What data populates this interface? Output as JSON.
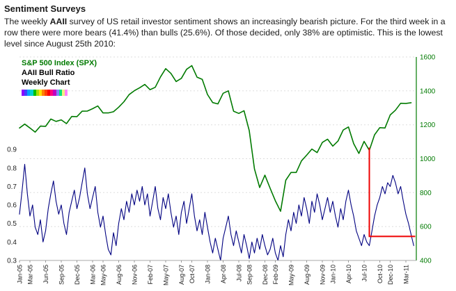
{
  "page": {
    "title": "Sentiment Surveys",
    "paragraph": {
      "pre": "The weekly ",
      "bold": "AAII",
      "post": " survey of US retail investor sentiment shows an increasingly bearish picture. For the third week in a row there were more bears (41.4%) than bulls (25.6%). Of those decided, only 38% are optimistic. This is the lowest level since August 25th 2010:"
    }
  },
  "legend": {
    "spx_label": "S&P 500 Index (SPX)",
    "ratio_label": "AAII Bull Ratio",
    "sub_label": "Weekly Chart",
    "spx_color": "#007a00",
    "ratio_color": "#000080"
  },
  "rainbow_colors": [
    "#8b00ff",
    "#4040ff",
    "#00a0ff",
    "#00d0d0",
    "#00c000",
    "#a0e000",
    "#ffe000",
    "#ff8000",
    "#ff4000",
    "#ff0000",
    "#ff0080",
    "#c000c0",
    "#8080ff",
    "#00e080",
    "#f0f080",
    "#ff80ff"
  ],
  "chart_data": {
    "type": "line",
    "title": "S&P 500 Index vs AAII Bull Ratio, Weekly Chart",
    "grid": {
      "color": "#dddddd",
      "dash": "2,3"
    },
    "x_axis": {
      "unit": "months since Jan-2005",
      "min": 0,
      "max": 76,
      "ticks": [
        {
          "label": "Jan-05",
          "m": 0
        },
        {
          "label": "Mar-05",
          "m": 2
        },
        {
          "label": "Jun-05",
          "m": 5
        },
        {
          "label": "Sep-05",
          "m": 8
        },
        {
          "label": "Dec-05",
          "m": 11
        },
        {
          "label": "Mar-06",
          "m": 14
        },
        {
          "label": "May-06",
          "m": 16
        },
        {
          "label": "Aug-06",
          "m": 19
        },
        {
          "label": "Nov-06",
          "m": 22
        },
        {
          "label": "Feb-07",
          "m": 25
        },
        {
          "label": "May-07",
          "m": 28
        },
        {
          "label": "Aug-07",
          "m": 31
        },
        {
          "label": "Oct-07",
          "m": 33
        },
        {
          "label": "Jan-08",
          "m": 36
        },
        {
          "label": "Apr-08",
          "m": 39
        },
        {
          "label": "Jul-08",
          "m": 42
        },
        {
          "label": "Sep-08",
          "m": 44
        },
        {
          "label": "Dec-08",
          "m": 47
        },
        {
          "label": "Feb-09",
          "m": 49
        },
        {
          "label": "May-09",
          "m": 52
        },
        {
          "label": "Aug-09",
          "m": 55
        },
        {
          "label": "Nov-09",
          "m": 58
        },
        {
          "label": "Jan-10",
          "m": 60
        },
        {
          "label": "Apr-10",
          "m": 63
        },
        {
          "label": "Jul-10",
          "m": 66
        },
        {
          "label": "Oct-10",
          "m": 69
        },
        {
          "label": "Dec-10",
          "m": 71
        },
        {
          "label": "Mar-11",
          "m": 74
        }
      ]
    },
    "left_axis": {
      "label": "AAII Bull Ratio",
      "min": 0.3,
      "max": 1.4,
      "ticks": [
        0.3,
        0.4,
        0.5,
        0.6,
        0.7,
        0.8,
        0.9
      ],
      "color": "#222222"
    },
    "right_axis": {
      "label": "S&P 500 Index (SPX)",
      "min": 400,
      "max": 1600,
      "ticks": [
        400,
        600,
        800,
        1000,
        1200,
        1400,
        1600
      ],
      "color": "#007a00"
    },
    "series": [
      {
        "name": "S&P 500 Index (SPX)",
        "axis": "right",
        "color": "#007a00",
        "width": 1.6,
        "x_start": 0,
        "x_step": 1,
        "values": [
          1181,
          1204,
          1181,
          1157,
          1192,
          1191,
          1234,
          1220,
          1229,
          1207,
          1249,
          1248,
          1280,
          1281,
          1295,
          1311,
          1270,
          1270,
          1277,
          1304,
          1336,
          1378,
          1401,
          1418,
          1438,
          1407,
          1421,
          1482,
          1531,
          1503,
          1455,
          1474,
          1527,
          1549,
          1481,
          1468,
          1379,
          1331,
          1323,
          1386,
          1400,
          1280,
          1267,
          1283,
          1166,
          940,
          830,
          903,
          826,
          752,
          690,
          873,
          919,
          919,
          987,
          1021,
          1057,
          1036,
          1096,
          1115,
          1074,
          1104,
          1169,
          1187,
          1089,
          1031,
          1102,
          1049,
          1141,
          1183,
          1181,
          1258,
          1286,
          1327,
          1326,
          1330
        ]
      },
      {
        "name": "AAII Bull Ratio",
        "axis": "left",
        "color": "#000080",
        "width": 1.1,
        "x_start": 0,
        "x_step": 0.5,
        "values": [
          0.55,
          0.68,
          0.82,
          0.66,
          0.54,
          0.6,
          0.48,
          0.44,
          0.52,
          0.4,
          0.46,
          0.58,
          0.66,
          0.73,
          0.62,
          0.55,
          0.6,
          0.5,
          0.44,
          0.56,
          0.62,
          0.68,
          0.58,
          0.64,
          0.72,
          0.8,
          0.66,
          0.58,
          0.64,
          0.7,
          0.56,
          0.48,
          0.54,
          0.44,
          0.36,
          0.33,
          0.45,
          0.38,
          0.5,
          0.58,
          0.52,
          0.62,
          0.56,
          0.66,
          0.6,
          0.68,
          0.62,
          0.7,
          0.6,
          0.66,
          0.54,
          0.62,
          0.7,
          0.58,
          0.52,
          0.64,
          0.58,
          0.66,
          0.56,
          0.48,
          0.54,
          0.44,
          0.56,
          0.62,
          0.5,
          0.58,
          0.66,
          0.54,
          0.46,
          0.52,
          0.44,
          0.56,
          0.48,
          0.4,
          0.34,
          0.42,
          0.36,
          0.3,
          0.42,
          0.48,
          0.54,
          0.44,
          0.38,
          0.46,
          0.4,
          0.34,
          0.44,
          0.38,
          0.31,
          0.4,
          0.34,
          0.42,
          0.36,
          0.44,
          0.38,
          0.33,
          0.36,
          0.42,
          0.34,
          0.3,
          0.38,
          0.32,
          0.44,
          0.52,
          0.46,
          0.56,
          0.5,
          0.6,
          0.54,
          0.64,
          0.58,
          0.5,
          0.62,
          0.56,
          0.66,
          0.6,
          0.52,
          0.58,
          0.64,
          0.56,
          0.62,
          0.54,
          0.48,
          0.58,
          0.52,
          0.62,
          0.68,
          0.6,
          0.54,
          0.46,
          0.42,
          0.38,
          0.44,
          0.4,
          0.38,
          0.46,
          0.54,
          0.6,
          0.64,
          0.7,
          0.66,
          0.72,
          0.7,
          0.76,
          0.72,
          0.66,
          0.7,
          0.62,
          0.55,
          0.5,
          0.44,
          0.38
        ]
      }
    ],
    "annotation": {
      "name": "recent-low-marker",
      "color": "#ee0000",
      "width": 2,
      "x_month": 67,
      "x_end": 75.8,
      "level": 0.43,
      "top": 0.91
    }
  }
}
